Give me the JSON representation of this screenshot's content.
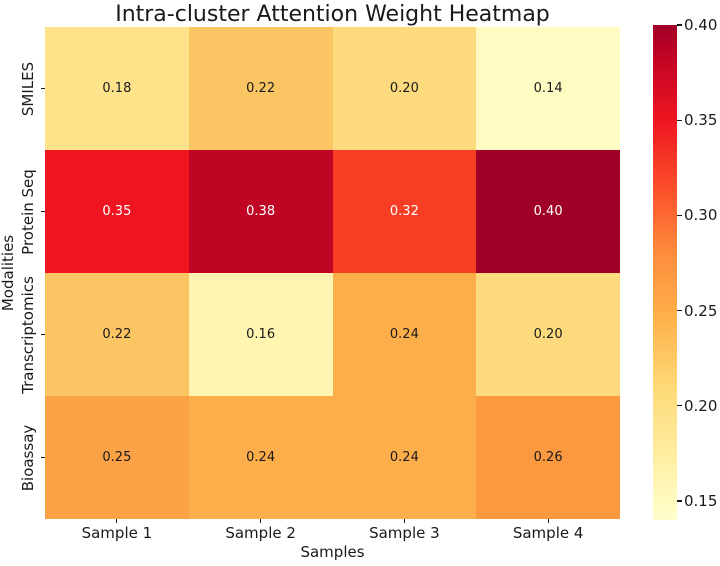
{
  "chart_data": {
    "type": "heatmap",
    "title": "Intra-cluster Attention Weight Heatmap",
    "xlabel": "Samples",
    "ylabel": "Modalities",
    "columns": [
      "Sample 1",
      "Sample 2",
      "Sample 3",
      "Sample 4"
    ],
    "rows": [
      "SMILES",
      "Protein Seq",
      "Transcriptomics",
      "Bioassay"
    ],
    "values": [
      [
        0.18,
        0.22,
        0.2,
        0.14
      ],
      [
        0.35,
        0.38,
        0.32,
        0.4
      ],
      [
        0.22,
        0.16,
        0.24,
        0.2
      ],
      [
        0.25,
        0.24,
        0.24,
        0.26
      ]
    ],
    "value_labels": [
      [
        "0.18",
        "0.22",
        "0.20",
        "0.14"
      ],
      [
        "0.35",
        "0.38",
        "0.32",
        "0.40"
      ],
      [
        "0.22",
        "0.16",
        "0.24",
        "0.20"
      ],
      [
        "0.25",
        "0.24",
        "0.24",
        "0.26"
      ]
    ],
    "cell_colors": [
      [
        "#fee38b",
        "#fcc563",
        "#fdda7d",
        "#fffcc3"
      ],
      [
        "#ee1521",
        "#c00424",
        "#f73e25",
        "#a10026"
      ],
      [
        "#fcc563",
        "#fff5b1",
        "#fcae4b",
        "#fdda7d"
      ],
      [
        "#fba246",
        "#fcae4b",
        "#fcae4b",
        "#fb9941"
      ]
    ],
    "cell_text_colors": [
      [
        "#1a1a1a",
        "#1a1a1a",
        "#1a1a1a",
        "#1a1a1a"
      ],
      [
        "#ffffff",
        "#ffffff",
        "#ffffff",
        "#ffffff"
      ],
      [
        "#1a1a1a",
        "#1a1a1a",
        "#1a1a1a",
        "#1a1a1a"
      ],
      [
        "#1a1a1a",
        "#1a1a1a",
        "#1a1a1a",
        "#1a1a1a"
      ]
    ],
    "colormap": "YlOrRd",
    "grid": false,
    "legend_position": "colorbar-right",
    "colorbar": {
      "vmin": 0.14,
      "vmax": 0.4,
      "ticks": [
        {
          "value": 0.4,
          "label": "0.40"
        },
        {
          "value": 0.35,
          "label": "0.35"
        },
        {
          "value": 0.3,
          "label": "0.30"
        },
        {
          "value": 0.25,
          "label": "0.25"
        },
        {
          "value": 0.2,
          "label": "0.20"
        },
        {
          "value": 0.15,
          "label": "0.15"
        }
      ],
      "gradient": [
        {
          "pos": 0,
          "color": "#ffffcc"
        },
        {
          "pos": 13.5,
          "color": "#ffeda0"
        },
        {
          "pos": 26.9,
          "color": "#fed976"
        },
        {
          "pos": 40.4,
          "color": "#feb24c"
        },
        {
          "pos": 53.8,
          "color": "#fd8d3c"
        },
        {
          "pos": 67.3,
          "color": "#fc4e2a"
        },
        {
          "pos": 80.8,
          "color": "#ee1521"
        },
        {
          "pos": 94.2,
          "color": "#bf0325"
        },
        {
          "pos": 100,
          "color": "#a10026"
        }
      ]
    },
    "axis_color": "#1a1a1a"
  }
}
